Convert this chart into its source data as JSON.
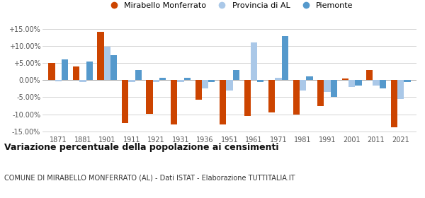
{
  "years": [
    1871,
    1881,
    1901,
    1911,
    1921,
    1931,
    1936,
    1951,
    1961,
    1971,
    1981,
    1991,
    2001,
    2011,
    2021
  ],
  "mirabello": [
    5.0,
    4.0,
    14.3,
    -12.5,
    -9.8,
    -13.0,
    -5.7,
    -13.0,
    -10.5,
    -9.5,
    -10.2,
    -7.6,
    0.5,
    3.0,
    -13.8
  ],
  "provincia": [
    -0.3,
    -0.5,
    9.8,
    -0.5,
    -0.5,
    -0.5,
    -2.5,
    -3.0,
    11.0,
    0.8,
    -3.0,
    -3.5,
    -2.0,
    -1.5,
    -5.5
  ],
  "piemonte": [
    6.1,
    5.5,
    7.3,
    3.0,
    0.8,
    0.7,
    -0.5,
    3.0,
    -0.5,
    13.0,
    1.1,
    -5.0,
    -1.5,
    -2.5,
    -0.5
  ],
  "mirabello_color": "#cc4400",
  "provincia_color": "#aac8e8",
  "piemonte_color": "#5599cc",
  "title": "Variazione percentuale della popolazione ai censimenti",
  "subtitle": "COMUNE DI MIRABELLO MONFERRATO (AL) - Dati ISTAT - Elaborazione TUTTITALIA.IT",
  "legend_labels": [
    "Mirabello Monferrato",
    "Provincia di AL",
    "Piemonte"
  ],
  "ylim": [
    -16,
    16
  ],
  "yticks": [
    -15,
    -10,
    -5,
    0,
    5,
    10,
    15
  ],
  "ytick_labels": [
    "-15.00%",
    "-10.00%",
    "-5.00%",
    "0.00%",
    "+5.00%",
    "+10.00%",
    "+15.00%"
  ],
  "background_color": "#ffffff",
  "grid_color": "#cccccc"
}
